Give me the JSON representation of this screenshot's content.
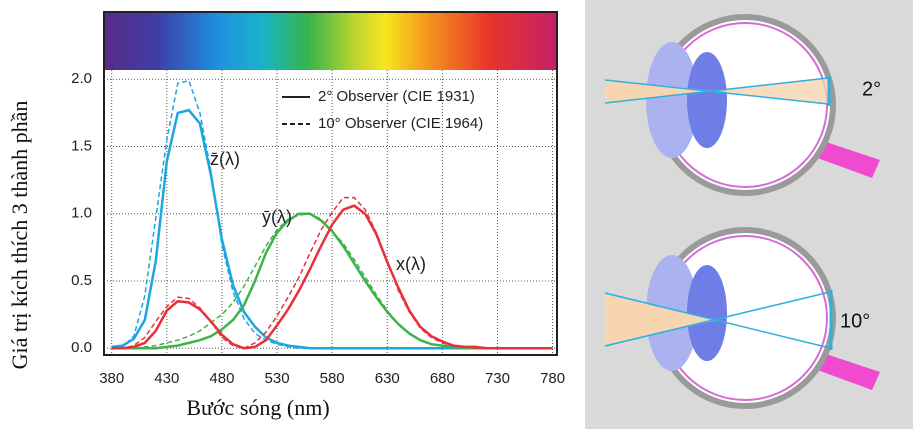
{
  "chart_data": {
    "type": "line",
    "x_label": "Bước sóng (nm)",
    "y_label": "Giá trị kích thích 3 thành phần",
    "x": [
      380,
      390,
      400,
      410,
      420,
      430,
      440,
      450,
      460,
      470,
      480,
      490,
      500,
      510,
      520,
      530,
      540,
      550,
      560,
      570,
      580,
      590,
      600,
      610,
      620,
      630,
      640,
      650,
      660,
      670,
      680,
      690,
      700,
      710,
      720,
      730,
      740,
      750,
      760,
      770,
      780
    ],
    "xlim": [
      373,
      784
    ],
    "xticks": [
      380,
      430,
      480,
      530,
      580,
      630,
      680,
      730,
      780
    ],
    "ylim": [
      -0.05,
      2.5
    ],
    "yticks": [
      {
        "value": 0,
        "label": "0.0"
      },
      0.5,
      {
        "value": 1,
        "label": "1.0"
      },
      1.5,
      {
        "value": 2,
        "label": "2.0"
      }
    ],
    "grid": true,
    "legend": [
      {
        "label": "2° Observer (CIE 1931)",
        "dash": "solid"
      },
      {
        "label": "10° Observer (CIE 1964)",
        "dash": "dashed"
      }
    ],
    "series": [
      {
        "name": "z̄(λ)",
        "color": "#1ba6e0",
        "values": [
          0.01,
          0.02,
          0.07,
          0.21,
          0.65,
          1.39,
          1.75,
          1.77,
          1.67,
          1.29,
          0.81,
          0.47,
          0.27,
          0.16,
          0.08,
          0.04,
          0.02,
          0.01,
          0,
          0,
          0,
          0,
          0,
          0,
          0,
          0,
          0,
          0,
          0,
          0,
          0,
          0,
          0,
          0,
          0,
          0,
          0,
          0,
          0,
          0,
          0
        ],
        "values_10": [
          0,
          0.01,
          0.09,
          0.39,
          0.97,
          1.55,
          1.97,
          1.99,
          1.75,
          1.32,
          0.77,
          0.42,
          0.22,
          0.11,
          0.06,
          0.03,
          0.01,
          0,
          0,
          0,
          0,
          0,
          0,
          0,
          0,
          0,
          0,
          0,
          0,
          0,
          0,
          0,
          0,
          0,
          0,
          0,
          0,
          0,
          0,
          0,
          0
        ]
      },
      {
        "name": "ȳ(λ)",
        "color": "#3db34a",
        "values": [
          0,
          0,
          0,
          0,
          0,
          0.01,
          0.02,
          0.04,
          0.06,
          0.09,
          0.14,
          0.21,
          0.32,
          0.5,
          0.71,
          0.86,
          0.95,
          1,
          1,
          0.95,
          0.87,
          0.76,
          0.63,
          0.5,
          0.38,
          0.27,
          0.18,
          0.11,
          0.06,
          0.03,
          0.02,
          0.01,
          0,
          0,
          0,
          0,
          0,
          0,
          0,
          0,
          0
        ],
        "values_10": [
          0,
          0,
          0,
          0.01,
          0.02,
          0.04,
          0.06,
          0.09,
          0.13,
          0.19,
          0.25,
          0.34,
          0.46,
          0.61,
          0.76,
          0.88,
          0.96,
          0.99,
          1,
          0.96,
          0.87,
          0.78,
          0.66,
          0.53,
          0.4,
          0.28,
          0.18,
          0.11,
          0.06,
          0.03,
          0.02,
          0.01,
          0,
          0,
          0,
          0,
          0,
          0,
          0,
          0,
          0
        ]
      },
      {
        "name": "x(λ)",
        "color": "#e8303a",
        "values": [
          0,
          0,
          0.01,
          0.04,
          0.13,
          0.28,
          0.35,
          0.34,
          0.29,
          0.2,
          0.1,
          0.03,
          0,
          0.01,
          0.06,
          0.17,
          0.29,
          0.43,
          0.59,
          0.76,
          0.92,
          1.03,
          1.06,
          1,
          0.85,
          0.64,
          0.45,
          0.28,
          0.16,
          0.09,
          0.05,
          0.02,
          0.01,
          0.01,
          0,
          0,
          0,
          0,
          0,
          0,
          0
        ],
        "values_10": [
          0,
          0,
          0.02,
          0.08,
          0.2,
          0.31,
          0.38,
          0.37,
          0.3,
          0.2,
          0.08,
          0.02,
          0,
          0.04,
          0.12,
          0.24,
          0.38,
          0.53,
          0.71,
          0.88,
          1.01,
          1.12,
          1.12,
          1.03,
          0.86,
          0.65,
          0.43,
          0.27,
          0.15,
          0.08,
          0.04,
          0.02,
          0.01,
          0,
          0,
          0,
          0,
          0,
          0,
          0,
          0
        ]
      }
    ]
  },
  "diagram": {
    "labels": [
      "2°",
      "10°"
    ]
  }
}
